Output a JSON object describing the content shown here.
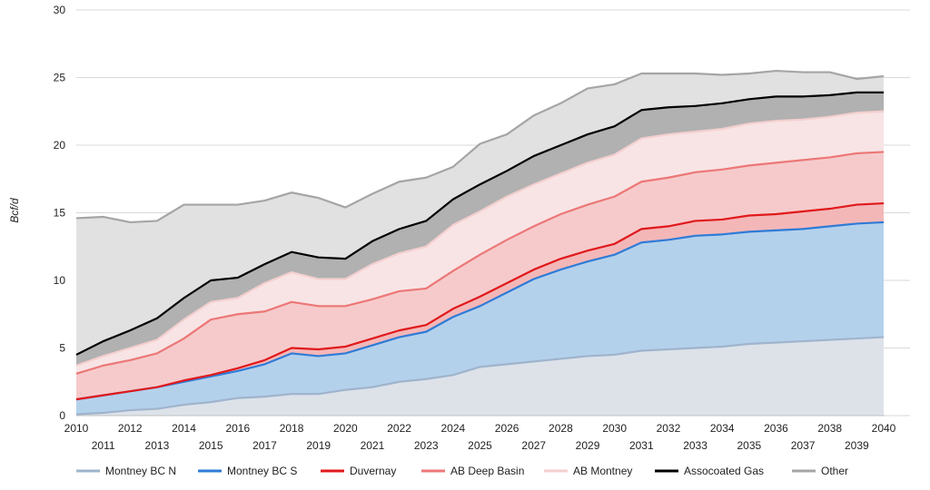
{
  "chart_data": {
    "type": "area",
    "title": "",
    "xlabel": "",
    "ylabel": "Bcf/d",
    "ylim": [
      0,
      30
    ],
    "yticks": [
      0,
      5,
      10,
      15,
      20,
      25,
      30
    ],
    "grid": true,
    "stacked": true,
    "legend_position": "bottom",
    "x": [
      2010,
      2011,
      2012,
      2013,
      2014,
      2015,
      2016,
      2017,
      2018,
      2019,
      2020,
      2021,
      2022,
      2023,
      2024,
      2025,
      2026,
      2027,
      2028,
      2029,
      2030,
      2031,
      2032,
      2033,
      2034,
      2035,
      2036,
      2037,
      2038,
      2039,
      2040
    ],
    "series": [
      {
        "name": "Montney BC N",
        "line_color": "#9fb4cc",
        "fill_color": "#dde2e9",
        "cumulative": [
          0.1,
          0.2,
          0.4,
          0.5,
          0.8,
          1.0,
          1.3,
          1.4,
          1.6,
          1.6,
          1.9,
          2.1,
          2.5,
          2.7,
          3.0,
          3.6,
          3.8,
          4.0,
          4.2,
          4.4,
          4.5,
          4.8,
          4.9,
          5.0,
          5.1,
          5.3,
          5.4,
          5.5,
          5.6,
          5.7,
          5.8
        ]
      },
      {
        "name": "Montney BC S",
        "line_color": "#2f7bd6",
        "fill_color": "#b4d1ec",
        "cumulative": [
          1.2,
          1.5,
          1.8,
          2.1,
          2.5,
          2.9,
          3.3,
          3.8,
          4.6,
          4.4,
          4.6,
          5.2,
          5.8,
          6.2,
          7.3,
          8.1,
          9.1,
          10.1,
          10.8,
          11.4,
          11.9,
          12.8,
          13.0,
          13.3,
          13.4,
          13.6,
          13.7,
          13.8,
          14.0,
          14.2,
          14.3
        ]
      },
      {
        "name": "Duvernay",
        "line_color": "#e0191b",
        "fill_color": "#f4b7b8",
        "cumulative": [
          1.2,
          1.5,
          1.8,
          2.1,
          2.6,
          3.0,
          3.5,
          4.1,
          5.0,
          4.9,
          5.1,
          5.7,
          6.3,
          6.7,
          7.9,
          8.8,
          9.8,
          10.8,
          11.6,
          12.2,
          12.7,
          13.8,
          14.0,
          14.4,
          14.5,
          14.8,
          14.9,
          15.1,
          15.3,
          15.6,
          15.7
        ]
      },
      {
        "name": "AB Deep Basin",
        "line_color": "#ec7777",
        "fill_color": "#f6cacb",
        "cumulative": [
          3.1,
          3.7,
          4.1,
          4.6,
          5.7,
          7.1,
          7.5,
          7.7,
          8.4,
          8.1,
          8.1,
          8.6,
          9.2,
          9.4,
          10.7,
          11.9,
          13.0,
          14.0,
          14.9,
          15.6,
          16.2,
          17.3,
          17.6,
          18.0,
          18.2,
          18.5,
          18.7,
          18.9,
          19.1,
          19.4,
          19.5
        ]
      },
      {
        "name": "AB Montney",
        "line_color": "#f4cfcf",
        "fill_color": "#f8e4e5",
        "cumulative": [
          3.7,
          4.4,
          5.0,
          5.6,
          7.1,
          8.4,
          8.7,
          9.8,
          10.6,
          10.1,
          10.1,
          11.2,
          12.0,
          12.5,
          14.1,
          15.1,
          16.2,
          17.1,
          17.9,
          18.7,
          19.3,
          20.5,
          20.8,
          21.0,
          21.2,
          21.6,
          21.8,
          21.9,
          22.1,
          22.4,
          22.5
        ]
      },
      {
        "name": "Assocoated Gas",
        "line_color": "#000000",
        "fill_color": "#b1b1b1",
        "cumulative": [
          4.5,
          5.5,
          6.3,
          7.2,
          8.7,
          10.0,
          10.2,
          11.2,
          12.1,
          11.7,
          11.6,
          12.9,
          13.8,
          14.4,
          16.0,
          17.1,
          18.1,
          19.2,
          20.0,
          20.8,
          21.4,
          22.6,
          22.8,
          22.9,
          23.1,
          23.4,
          23.6,
          23.6,
          23.7,
          23.9,
          23.9
        ]
      },
      {
        "name": "Other",
        "line_color": "#a5a5a5",
        "fill_color": "#e1e1e1",
        "cumulative": [
          14.6,
          14.7,
          14.3,
          14.4,
          15.6,
          15.6,
          15.6,
          15.9,
          16.5,
          16.1,
          15.4,
          16.4,
          17.3,
          17.6,
          18.4,
          20.1,
          20.8,
          22.2,
          23.1,
          24.2,
          24.5,
          25.3,
          25.3,
          25.3,
          25.2,
          25.3,
          25.5,
          25.4,
          25.4,
          24.9,
          25.1
        ]
      }
    ]
  }
}
